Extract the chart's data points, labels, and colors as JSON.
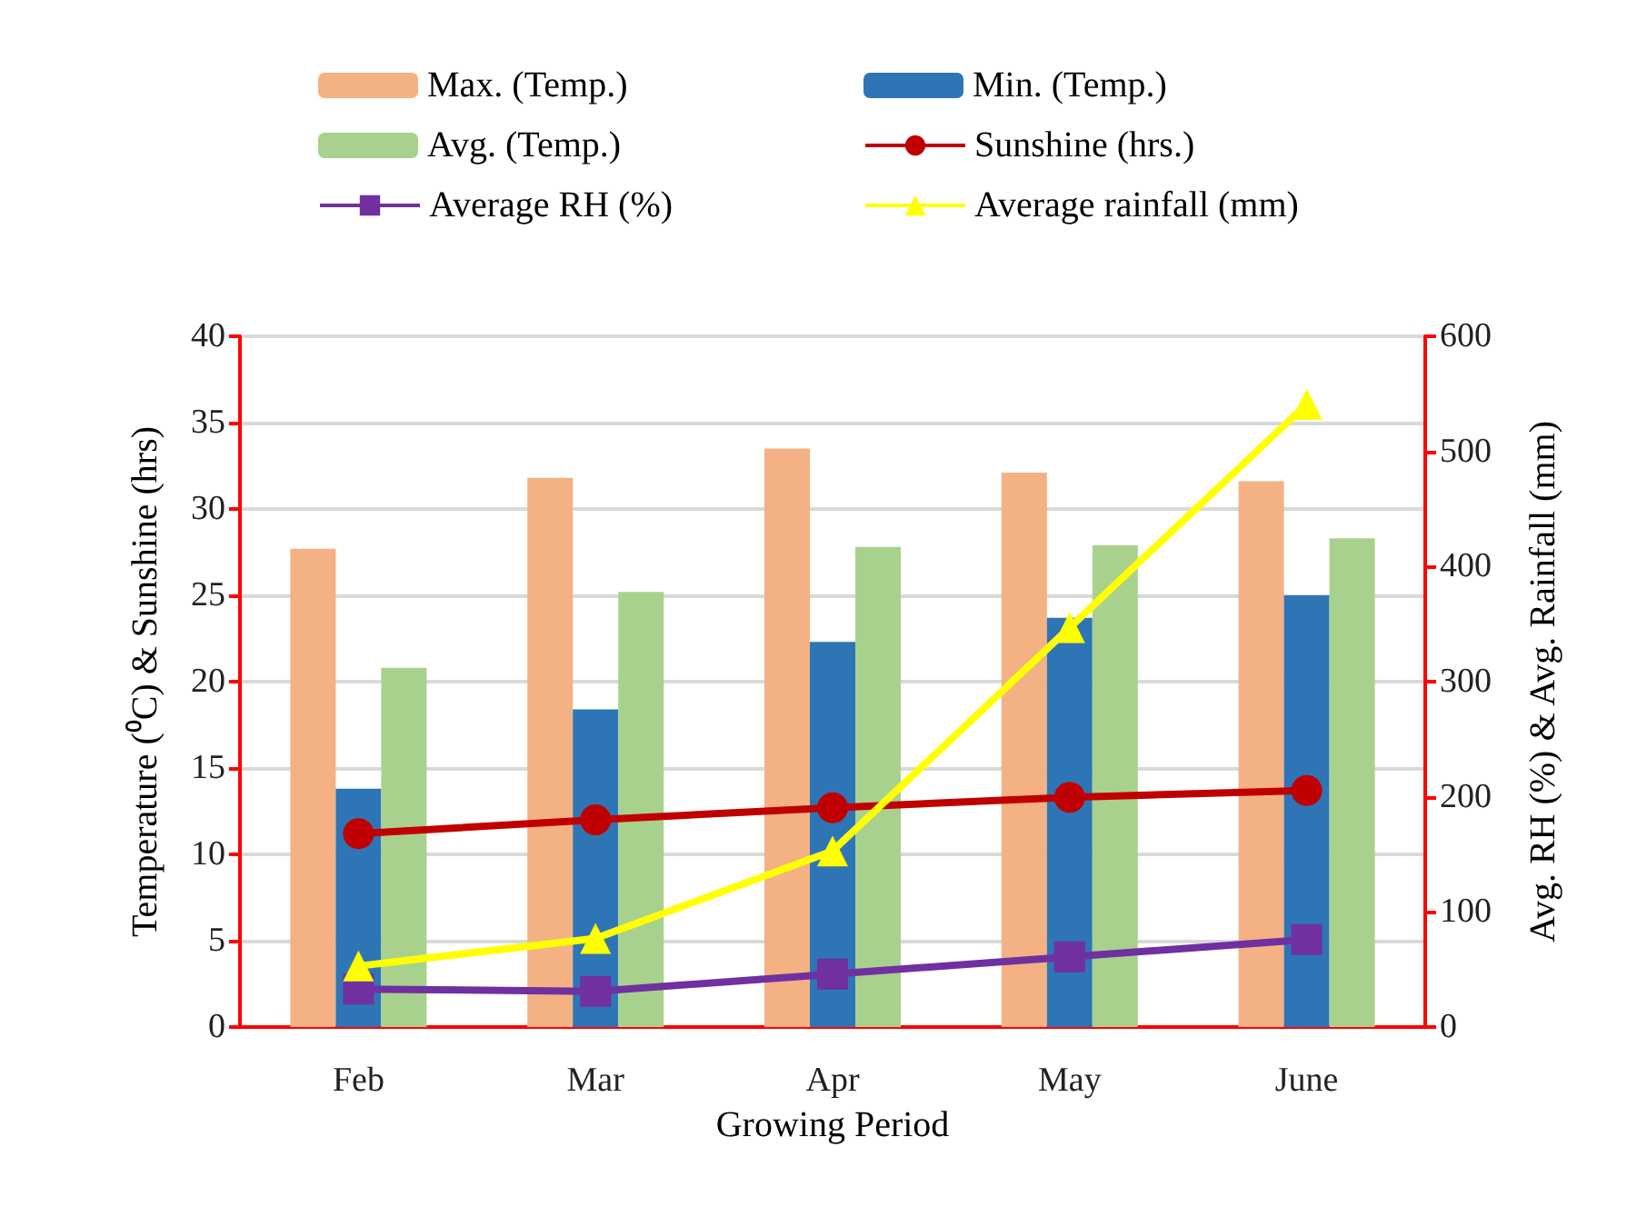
{
  "chart_data": {
    "type": "bar",
    "xlabel": "Growing Period",
    "ylabel": "Temperature (⁰C) & Sunshine (hrs)",
    "y2label": "Avg. RH (%) & Avg. Rainfall (mm)",
    "categories": [
      "Feb",
      "Mar",
      "Apr",
      "May",
      "June"
    ],
    "series": [
      {
        "name": "Max. (Temp.)",
        "color": "#f4b183",
        "values": [
          27.7,
          31.8,
          33.5,
          32.1,
          31.6
        ]
      },
      {
        "name": "Min. (Temp.)",
        "color": "#2e75b6",
        "values": [
          13.8,
          18.4,
          22.3,
          23.7,
          25.0
        ]
      },
      {
        "name": "Avg. (Temp.)",
        "color": "#a9d18e",
        "values": [
          20.8,
          25.2,
          27.8,
          27.9,
          28.3
        ]
      },
      {
        "name": "Sunshine (hrs.)",
        "type": "line",
        "color": "#c00000",
        "marker": "circle",
        "values": [
          11.2,
          12.0,
          12.7,
          13.3,
          13.7
        ]
      },
      {
        "name": "Average RH (%)",
        "type": "line",
        "axis": "y2",
        "color": "#7030a0",
        "marker": "square",
        "values": [
          33,
          31,
          46,
          61,
          76
        ]
      },
      {
        "name": "Average rainfall (mm)",
        "type": "line",
        "axis": "y2",
        "color": "#ffff00",
        "marker": "triangle",
        "values": [
          53,
          77,
          153,
          347,
          541
        ]
      }
    ],
    "ylim": [
      0,
      40
    ],
    "yticks": [
      0,
      5,
      10,
      15,
      20,
      25,
      30,
      35,
      40
    ],
    "y2lim": [
      0,
      600
    ],
    "y2ticks": [
      0,
      100,
      200,
      300,
      400,
      500,
      600
    ],
    "grid": "y",
    "legend": "top"
  }
}
